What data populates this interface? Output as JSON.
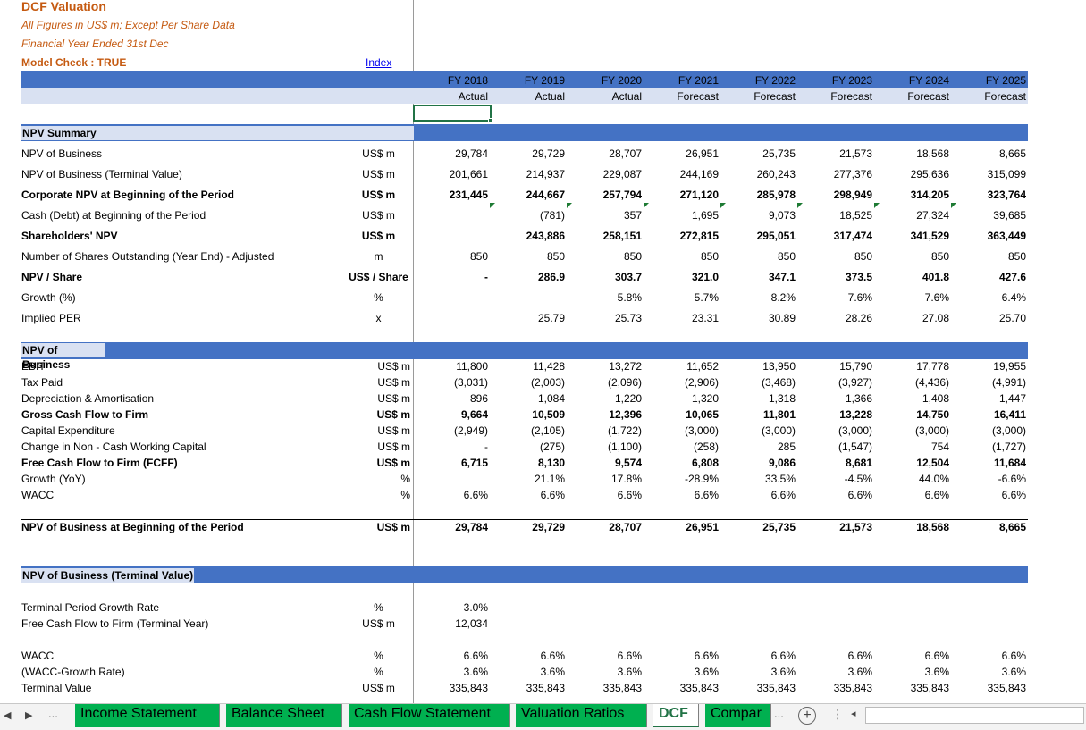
{
  "header": {
    "title": "DCF Valuation",
    "subtitle1": "All Figures in US$ m; Except Per Share Data",
    "subtitle2": "Financial Year Ended 31st Dec",
    "model_check": "Model Check : TRUE",
    "index_link": "Index"
  },
  "years": [
    {
      "fy": "FY 2018",
      "type": "Actual"
    },
    {
      "fy": "FY 2019",
      "type": "Actual"
    },
    {
      "fy": "FY 2020",
      "type": "Actual"
    },
    {
      "fy": "FY 2021",
      "type": "Forecast"
    },
    {
      "fy": "FY 2022",
      "type": "Forecast"
    },
    {
      "fy": "FY 2023",
      "type": "Forecast"
    },
    {
      "fy": "FY 2024",
      "type": "Forecast"
    },
    {
      "fy": "FY 2025",
      "type": "Forecast"
    }
  ],
  "npv_summary": {
    "title": "NPV Summary",
    "rows": [
      {
        "label": "NPV of Business",
        "unit": "US$ m",
        "bold": false,
        "values": [
          "29,784",
          "29,729",
          "28,707",
          "26,951",
          "25,735",
          "21,573",
          "18,568",
          "8,665"
        ]
      },
      {
        "label": "NPV of Business (Terminal Value)",
        "unit": "US$ m",
        "bold": false,
        "values": [
          "201,661",
          "214,937",
          "229,087",
          "244,169",
          "260,243",
          "277,376",
          "295,636",
          "315,099"
        ]
      },
      {
        "label": "Corporate NPV at Beginning of the Period",
        "unit": "US$ m",
        "bold": true,
        "values": [
          "231,445",
          "244,667",
          "257,794",
          "271,120",
          "285,978",
          "298,949",
          "314,205",
          "323,764"
        ]
      },
      {
        "label": "Cash (Debt) at Beginning of the Period",
        "unit": "US$ m",
        "bold": false,
        "values": [
          "",
          "(781)",
          "357",
          "1,695",
          "9,073",
          "18,525",
          "27,324",
          "39,685"
        ]
      },
      {
        "label": "Shareholders' NPV",
        "unit": "US$ m",
        "bold": true,
        "values": [
          "",
          "243,886",
          "258,151",
          "272,815",
          "295,051",
          "317,474",
          "341,529",
          "363,449"
        ]
      },
      {
        "label": "Number of Shares Outstanding (Year End) - Adjusted",
        "unit": "m",
        "bold": false,
        "values": [
          "850",
          "850",
          "850",
          "850",
          "850",
          "850",
          "850",
          "850"
        ]
      },
      {
        "label": "NPV / Share",
        "unit": "US$ / Share",
        "bold": true,
        "values": [
          "-",
          "286.9",
          "303.7",
          "321.0",
          "347.1",
          "373.5",
          "401.8",
          "427.6"
        ]
      },
      {
        "label": "Growth (%)",
        "unit": "%",
        "bold": false,
        "values": [
          "",
          "",
          "5.8%",
          "5.7%",
          "8.2%",
          "7.6%",
          "7.6%",
          "6.4%"
        ]
      },
      {
        "label": "Implied PER",
        "unit": "x",
        "bold": false,
        "values": [
          "",
          "25.79",
          "25.73",
          "23.31",
          "30.89",
          "28.26",
          "27.08",
          "25.70"
        ]
      }
    ]
  },
  "npv_business": {
    "title": "NPV of Business",
    "rows": [
      {
        "label": "EBIT",
        "unit": "US$ m",
        "bold": false,
        "values": [
          "11,800",
          "11,428",
          "13,272",
          "11,652",
          "13,950",
          "15,790",
          "17,778",
          "19,955"
        ]
      },
      {
        "label": "Tax Paid",
        "unit": "US$ m",
        "bold": false,
        "values": [
          "(3,031)",
          "(2,003)",
          "(2,096)",
          "(2,906)",
          "(3,468)",
          "(3,927)",
          "(4,436)",
          "(4,991)"
        ]
      },
      {
        "label": "Depreciation & Amortisation",
        "unit": "US$ m",
        "bold": false,
        "values": [
          "896",
          "1,084",
          "1,220",
          "1,320",
          "1,318",
          "1,366",
          "1,408",
          "1,447"
        ]
      },
      {
        "label": "Gross Cash Flow to Firm",
        "unit": "US$ m",
        "bold": true,
        "values": [
          "9,664",
          "10,509",
          "12,396",
          "10,065",
          "11,801",
          "13,228",
          "14,750",
          "16,411"
        ]
      },
      {
        "label": "Capital Expenditure",
        "unit": "US$ m",
        "bold": false,
        "values": [
          "(2,949)",
          "(2,105)",
          "(1,722)",
          "(3,000)",
          "(3,000)",
          "(3,000)",
          "(3,000)",
          "(3,000)"
        ]
      },
      {
        "label": "Change in Non - Cash Working Capital",
        "unit": "US$ m",
        "bold": false,
        "values": [
          "-",
          "(275)",
          "(1,100)",
          "(258)",
          "285",
          "(1,547)",
          "754",
          "(1,727)"
        ]
      },
      {
        "label": "Free Cash Flow to Firm (FCFF)",
        "unit": "US$ m",
        "bold": true,
        "values": [
          "6,715",
          "8,130",
          "9,574",
          "6,808",
          "9,086",
          "8,681",
          "12,504",
          "11,684"
        ]
      },
      {
        "label": "Growth (YoY)",
        "unit": "%",
        "bold": false,
        "values": [
          "",
          "21.1%",
          "17.8%",
          "-28.9%",
          "33.5%",
          "-4.5%",
          "44.0%",
          "-6.6%"
        ]
      },
      {
        "label": "WACC",
        "unit": "%",
        "bold": false,
        "values": [
          "6.6%",
          "6.6%",
          "6.6%",
          "6.6%",
          "6.6%",
          "6.6%",
          "6.6%",
          "6.6%"
        ]
      }
    ],
    "total": {
      "label": "NPV of Business at Beginning of the Period",
      "unit": "US$ m",
      "values": [
        "29,784",
        "29,729",
        "28,707",
        "26,951",
        "25,735",
        "21,573",
        "18,568",
        "8,665"
      ]
    }
  },
  "terminal": {
    "title": "NPV of Business (Terminal Value)",
    "rows_a": [
      {
        "label": "Terminal Period Growth Rate",
        "unit": "%",
        "values": [
          "3.0%",
          "",
          "",
          "",
          "",
          "",
          "",
          ""
        ]
      },
      {
        "label": "Free Cash Flow to Firm (Terminal Year)",
        "unit": "US$ m",
        "values": [
          "12,034",
          "",
          "",
          "",
          "",
          "",
          "",
          ""
        ]
      }
    ],
    "rows_b": [
      {
        "label": "WACC",
        "unit": "%",
        "values": [
          "6.6%",
          "6.6%",
          "6.6%",
          "6.6%",
          "6.6%",
          "6.6%",
          "6.6%",
          "6.6%"
        ]
      },
      {
        "label": "(WACC-Growth Rate)",
        "unit": "%",
        "values": [
          "3.6%",
          "3.6%",
          "3.6%",
          "3.6%",
          "3.6%",
          "3.6%",
          "3.6%",
          "3.6%"
        ]
      },
      {
        "label": "Terminal Value",
        "unit": "US$ m",
        "values": [
          "335,843",
          "335,843",
          "335,843",
          "335,843",
          "335,843",
          "335,843",
          "335,843",
          "335,843"
        ]
      }
    ]
  },
  "tabs": {
    "prev": "◀",
    "next": "▶",
    "more_left": "...",
    "items": [
      "Income Statement",
      "Balance Sheet",
      "Cash Flow Statement",
      "Valuation Ratios",
      "DCF",
      "Compar"
    ],
    "active": "DCF",
    "more_right": "...",
    "add": "+"
  },
  "colors": {
    "accent_blue": "#4472c4",
    "light_blue": "#d9e1f2",
    "orange_title": "#c55a11",
    "tab_green": "#00b050",
    "excel_green": "#217346"
  }
}
